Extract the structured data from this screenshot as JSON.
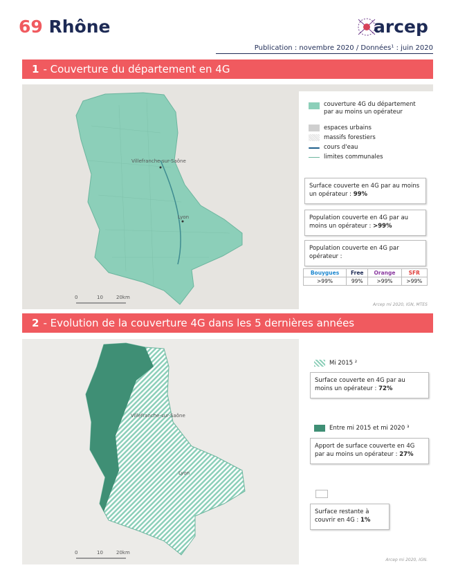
{
  "header": {
    "number": "69",
    "title": "Rhône",
    "logo": "arcep",
    "publication": "Publication : novembre 2020 / Données¹ : juin 2020"
  },
  "section1": {
    "number": "1",
    "title": "- Couverture du département en 4G",
    "map_labels": {
      "villefranche": "Villefranche-sur-Saône",
      "lyon": "Lyon",
      "scale": [
        "0",
        "10",
        "20km"
      ]
    },
    "legend": [
      "couverture 4G du département par au moins un opérateur",
      "espaces urbains",
      "massifs forestiers",
      "cours d'eau",
      "limites communales"
    ],
    "boxes": [
      {
        "label": "Surface couverte en 4G par au moins un opérateur :",
        "value": "99%"
      },
      {
        "label": "Population couverte en 4G par au moins un opérateur :",
        "value": ">99%"
      },
      {
        "label": "Population couverte en 4G par opérateur :"
      }
    ],
    "operators": [
      {
        "name": "Bouygues",
        "value": ">99%"
      },
      {
        "name": "Free",
        "value": "99%"
      },
      {
        "name": "Orange",
        "value": ">99%"
      },
      {
        "name": "SFR",
        "value": ">99%"
      }
    ],
    "credit": "Arcep mi 2020, IGN, MTES"
  },
  "section2": {
    "number": "2",
    "title": "- Evolution de la couverture 4G dans les 5 dernières années",
    "map_labels": {
      "villefranche": "Villefranche-sur-Saône",
      "lyon": "Lyon",
      "scale": [
        "0",
        "10",
        "20km"
      ]
    },
    "items": [
      {
        "legend": "Mi 2015 ²",
        "label": "Surface couverte en 4G par au moins un opérateur :",
        "value": "72%"
      },
      {
        "legend": "Entre mi 2015 et mi 2020 ³",
        "label": "Apport de surface couverte en 4G par au moins un opérateur :",
        "value": "27%"
      },
      {
        "label": "Surface restante à couvrir en 4G :",
        "value": "1%"
      }
    ],
    "credit": "Arcep mi 2020, IGN."
  }
}
